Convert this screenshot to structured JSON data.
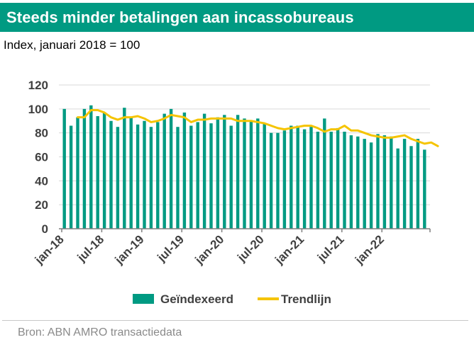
{
  "header": {
    "title": "Steeds minder betalingen aan incassobureaus",
    "subtitle": "Index, januari 2018 = 100"
  },
  "footer": {
    "source": "Bron: ABN AMRO transactiedata"
  },
  "colors": {
    "title_bg": "#009a82",
    "bar": "#009a82",
    "trend": "#f5c400",
    "axis_text": "#404040"
  },
  "chart_data": {
    "type": "bar",
    "title": "Steeds minder betalingen aan incassobureaus",
    "ylabel": "Index, januari 2018 = 100",
    "xlabel": "",
    "ylim": [
      0,
      120
    ],
    "yticks": [
      0,
      20,
      40,
      60,
      80,
      100,
      120
    ],
    "grid": true,
    "legend_position": "bottom",
    "tick_labels": [
      {
        "label": "jan-18",
        "index": 0
      },
      {
        "label": "jul-18",
        "index": 6
      },
      {
        "label": "jan-19",
        "index": 12
      },
      {
        "label": "jul-19",
        "index": 18
      },
      {
        "label": "jan-20",
        "index": 24
      },
      {
        "label": "jul-20",
        "index": 30
      },
      {
        "label": "jan-21",
        "index": 36
      },
      {
        "label": "jul-21",
        "index": 42
      },
      {
        "label": "jan-22",
        "index": 48
      }
    ],
    "series": [
      {
        "name": "Geïndexeerd",
        "type": "bar",
        "values": [
          100,
          86,
          93,
          100,
          103,
          94,
          97,
          90,
          85,
          101,
          93,
          87,
          90,
          85,
          89,
          96,
          100,
          85,
          97,
          86,
          89,
          96,
          88,
          93,
          95,
          86,
          95,
          92,
          90,
          92,
          88,
          80,
          80,
          82,
          86,
          86,
          83,
          85,
          81,
          92,
          81,
          84,
          81,
          78,
          77,
          75,
          72,
          79,
          78,
          77,
          67,
          75,
          69,
          75,
          66
        ]
      },
      {
        "name": "Trendlijn",
        "type": "line",
        "start_index": 2,
        "values": [
          93,
          93,
          99,
          99,
          97,
          93,
          91,
          93,
          93,
          94,
          92,
          89,
          90,
          92,
          95,
          94,
          93,
          89,
          91,
          91,
          92,
          92,
          92,
          92,
          90,
          90,
          90,
          89,
          88,
          86,
          84,
          83,
          84,
          85,
          86,
          86,
          84,
          81,
          83,
          83,
          86,
          82,
          82,
          80,
          78,
          77,
          76,
          76,
          77,
          78,
          75,
          73,
          71,
          72,
          69
        ]
      }
    ]
  }
}
